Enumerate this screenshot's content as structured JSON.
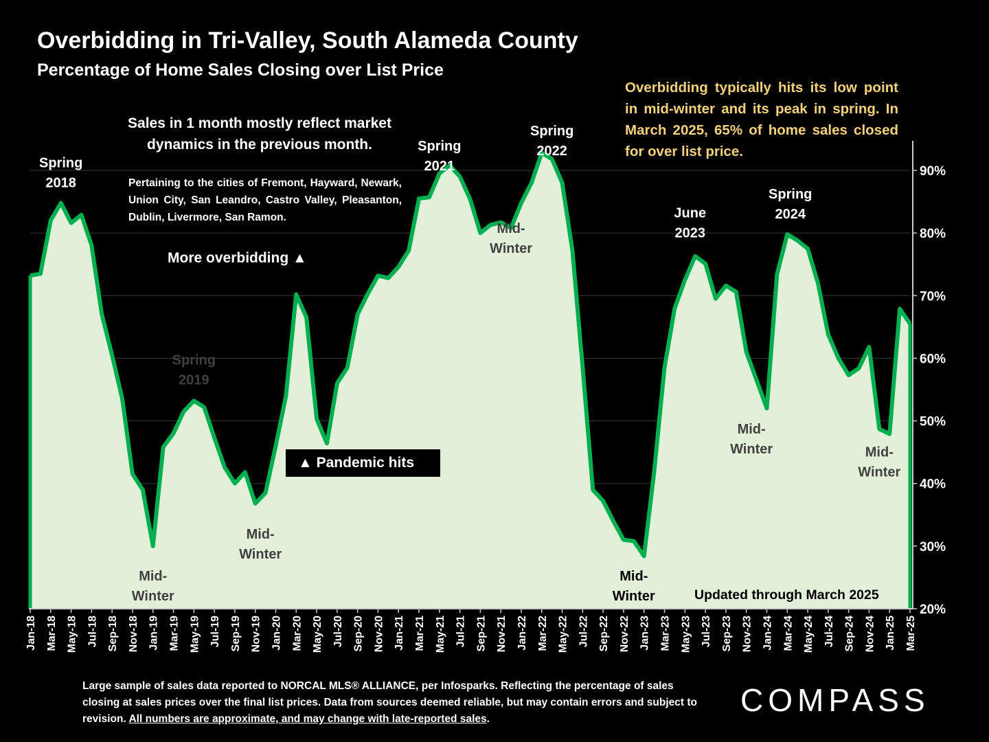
{
  "header": {
    "title": "Overbidding in Tri-Valley, South Alameda County",
    "subtitle": "Percentage of Home Sales Closing over List Price"
  },
  "notes": {
    "callout": "Overbidding typically hits its low point in mid-winter and its peak in spring. In March 2025, 65% of home sales closed for over list price.",
    "main_note": "Sales in 1 month mostly reflect market dynamics in the previous month.",
    "cities_note": "Pertaining to the cities of Fremont, Hayward, Newark, Union City, San Leandro, Castro Valley, Pleasanton, Dublin, Livermore, San Ramon.",
    "more_overbidding": "More overbidding ▲",
    "pandemic": "▲ Pandemic hits",
    "updated": "Updated through March 2025"
  },
  "footer": {
    "footnote_text": "Large sample of sales data reported to NORCAL MLS® ALLIANCE, per Infosparks. Reflecting the percentage of sales closing at sales prices over the final list prices. Data from sources deemed reliable, but may contain errors and subject to revision. ",
    "footnote_underlined": "All numbers are approximate, and may change with late-reported sales",
    "footnote_end": ".",
    "logo": "COMPASS"
  },
  "colors": {
    "background": "#000000",
    "area_fill": "#e2f0d9",
    "line": "#00b050",
    "callout_text": "#f5d27a",
    "label_on_area": "#404040"
  },
  "chart_data": {
    "type": "area",
    "title": "Overbidding in Tri-Valley, South Alameda County",
    "subtitle": "Percentage of Home Sales Closing over List Price",
    "ylim": [
      20,
      95
    ],
    "yticks": [
      "20%",
      "30%",
      "40%",
      "50%",
      "60%",
      "70%",
      "80%",
      "90%"
    ],
    "ytick_values": [
      20,
      30,
      40,
      50,
      60,
      70,
      80,
      90
    ],
    "y_axis_side": "right",
    "xtick_labels": [
      "Jan-18",
      "Mar-18",
      "May-18",
      "Jul-18",
      "Sep-18",
      "Nov-18",
      "Jan-19",
      "Mar-19",
      "May-19",
      "Jul-19",
      "Sep-19",
      "Nov-19",
      "Jan-20",
      "Mar-20",
      "May-20",
      "Jul-20",
      "Sep-20",
      "Nov-20",
      "Jan-21",
      "Mar-21",
      "May-21",
      "Jul-21",
      "Sep-21",
      "Nov-21",
      "Jan-22",
      "Mar-22",
      "May-22",
      "Jul-22",
      "Sep-22",
      "Nov-22",
      "Jan-23",
      "Mar-23",
      "May-23",
      "Jul-23",
      "Sep-23",
      "Nov-23",
      "Jan-24",
      "Mar-24",
      "May-24",
      "Jul-24",
      "Sep-24",
      "Nov-24",
      "Jan-25",
      "Mar-25"
    ],
    "x_start": "Jan-18",
    "x_end": "Mar-25",
    "series": [
      {
        "values": [
          73.2,
          73.5,
          82,
          84.8,
          81.6,
          82.9,
          78,
          67,
          60.5,
          53.5,
          41.5,
          39,
          30,
          45.8,
          48,
          51.5,
          53.2,
          52.2,
          47.3,
          42.6,
          40,
          41.8,
          36.8,
          38.5,
          46,
          54,
          70.2,
          66.5,
          50.3,
          46.4,
          56,
          58.5,
          67,
          70.3,
          73.2,
          72.8,
          74.6,
          77.2,
          85.5,
          85.7,
          89.5,
          90.8,
          89,
          85.4,
          80,
          81.3,
          81.7,
          80.8,
          84.8,
          88,
          92.8,
          91.8,
          88,
          77.2,
          58.5,
          39,
          37.2,
          34,
          31,
          30.8,
          28.4,
          42,
          58.5,
          68,
          72.5,
          76.3,
          75.1,
          69.5,
          71.6,
          70.6,
          61,
          56.5,
          52,
          73.4,
          79.8,
          78.8,
          77.5,
          72,
          63.8,
          60,
          57.3,
          58.4,
          61.8,
          48.7,
          47.9,
          67.9,
          65.5
        ]
      }
    ],
    "annotations": [
      {
        "text": [
          "Spring",
          "2018"
        ],
        "x": 3,
        "y": 90.5,
        "color": "#ffffff"
      },
      {
        "text": [
          "Mid-",
          "Winter"
        ],
        "x": 12,
        "y": 24.5,
        "color": "#404040"
      },
      {
        "text": [
          "Spring",
          "2019"
        ],
        "x": 16,
        "y": 59,
        "color": "#404040"
      },
      {
        "text": [
          "Mid-",
          "Winter"
        ],
        "x": 22.5,
        "y": 31.2,
        "color": "#404040"
      },
      {
        "text": [
          "Spring",
          "2021"
        ],
        "x": 40,
        "y": 93.2,
        "color": "#ffffff"
      },
      {
        "text": [
          "Mid-",
          "Winter"
        ],
        "x": 47,
        "y": 80,
        "color": "#404040"
      },
      {
        "text": [
          "Spring",
          "2022"
        ],
        "x": 51,
        "y": 95.6,
        "color": "#ffffff"
      },
      {
        "text": [
          "Mid-",
          "Winter"
        ],
        "x": 59,
        "y": 24.5,
        "color": "#000000"
      },
      {
        "text": [
          "June",
          "2023"
        ],
        "x": 64.5,
        "y": 82.5,
        "color": "#ffffff"
      },
      {
        "text": [
          "Spring",
          "2024"
        ],
        "x": 74.3,
        "y": 85.5,
        "color": "#ffffff"
      },
      {
        "text": [
          "Mid-",
          "Winter"
        ],
        "x": 70.5,
        "y": 48,
        "color": "#404040"
      },
      {
        "text": [
          "Mid-",
          "Winter"
        ],
        "x": 83,
        "y": 44.3,
        "color": "#404040"
      }
    ]
  }
}
